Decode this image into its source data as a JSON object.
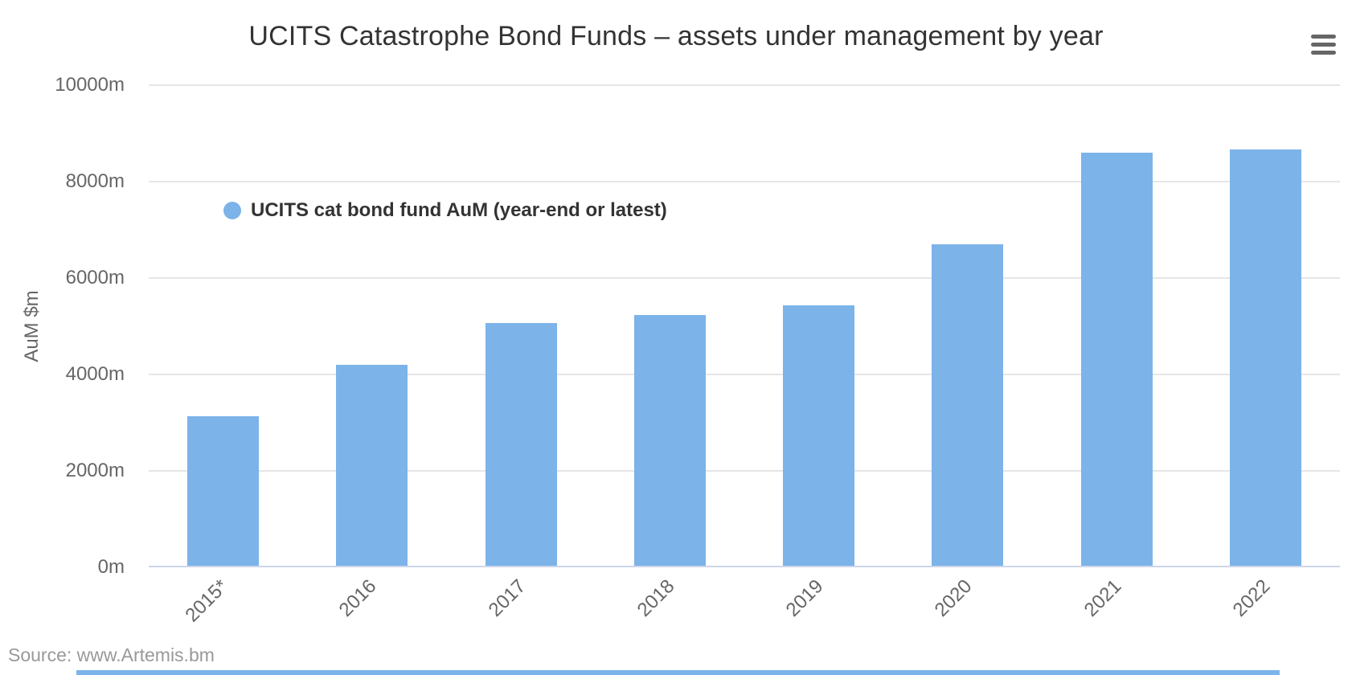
{
  "title": "UCITS Catastrophe Bond Funds – assets under management by year",
  "legend": {
    "label": "UCITS cat bond fund AuM (year-end or latest)",
    "marker_color": "#7cb3e9"
  },
  "credits": "Source: www.Artemis.bm",
  "icons": {
    "context_menu": "hamburger"
  },
  "colors": {
    "bar": "#7cb3e9",
    "grid": "#e6e6e6",
    "axis_line": "#ccd6eb",
    "title": "#333333",
    "labels": "#666666",
    "credits": "#999999",
    "menu_icon": "#666666",
    "bottom_bar": "#7cb3e9"
  },
  "chart_data": {
    "type": "bar",
    "title": "UCITS Catastrophe Bond Funds – assets under management by year",
    "categories": [
      "2015*",
      "2016",
      "2017",
      "2018",
      "2019",
      "2020",
      "2021",
      "2022"
    ],
    "series": [
      {
        "name": "UCITS cat bond fund AuM (year-end or latest)",
        "values": [
          3133,
          4200,
          5067,
          5233,
          5433,
          6700,
          8600,
          8667
        ]
      }
    ],
    "xlabel": "",
    "ylabel": "AuM $m",
    "ylim": [
      0,
      10000
    ],
    "ytick_interval": 2000,
    "ytick_labels": [
      "0m",
      "2000m",
      "4000m",
      "6000m",
      "8000m",
      "10000m"
    ],
    "grid": "horizontal",
    "legend_position": "top-left-inside",
    "x_label_rotation": -45
  }
}
